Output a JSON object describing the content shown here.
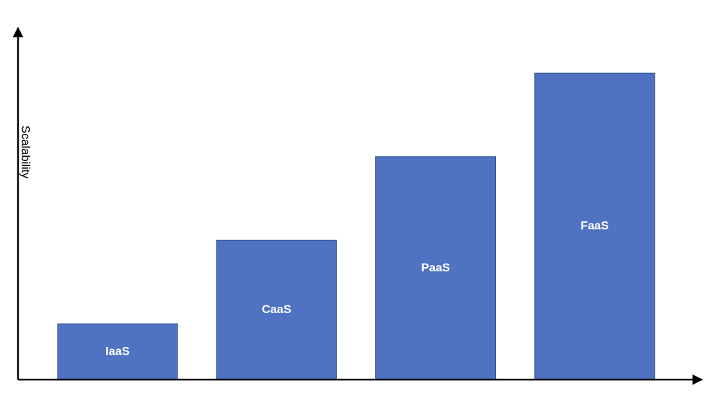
{
  "chart_data": {
    "type": "bar",
    "title": "",
    "xlabel": "",
    "ylabel": "Scalability",
    "categories": [
      "IaaS",
      "CaaS",
      "PaaS",
      "FaaS"
    ],
    "values": [
      1,
      2.5,
      4,
      5.5
    ],
    "ylim": [
      0,
      6.3
    ],
    "grid": false,
    "legend": "none",
    "y_tick_labels": false,
    "bar_color": "#4F72C3",
    "bar_border_color": "#2F4D87",
    "bar_label_color": "#ffffff",
    "axis_color": "#000000"
  }
}
